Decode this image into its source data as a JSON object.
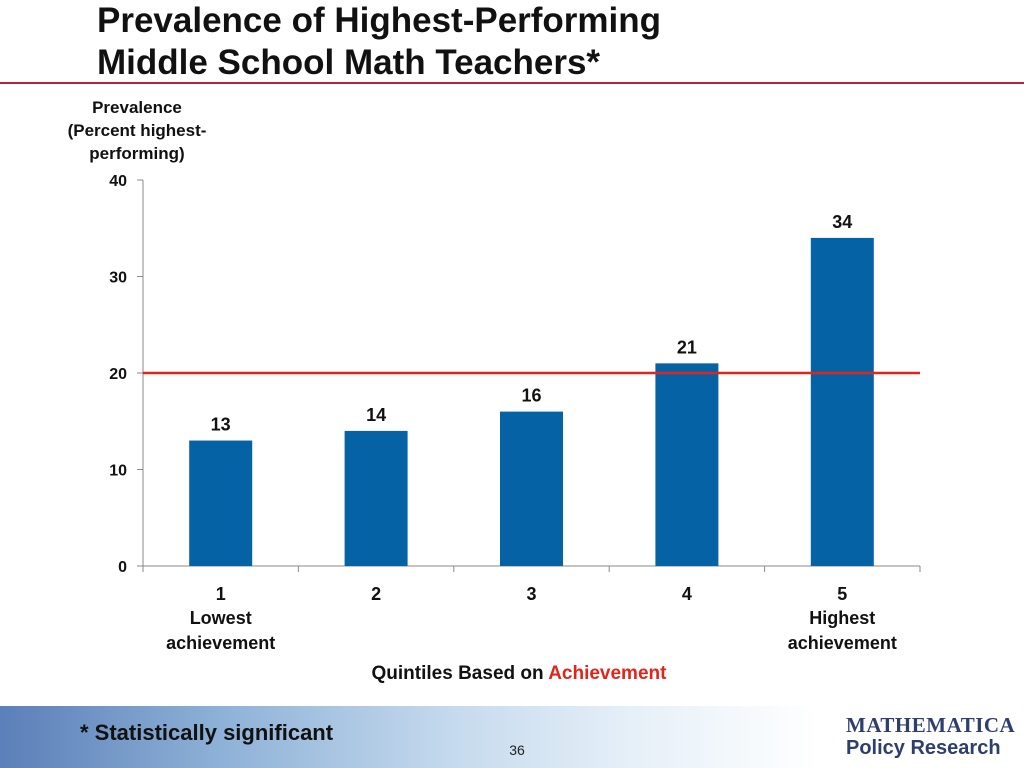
{
  "slide": {
    "title_line1": "Prevalence of Highest-Performing",
    "title_line2": "Middle School Math Teachers*",
    "footnote": "* Statistically significant",
    "page_number": "36",
    "logo_line1": "MATHEMATICA",
    "logo_line2": "Policy Research"
  },
  "colors": {
    "bar": "#0563a5",
    "reference_line": "#e0251b",
    "title_rule": "#b5253a",
    "xlabel_highlight": "#e0251b"
  },
  "chart_data": {
    "type": "bar",
    "categories": [
      "1",
      "2",
      "3",
      "4",
      "5"
    ],
    "category_sublabels": [
      "Lowest\nachievement",
      "",
      "",
      "",
      "Highest\nachievement"
    ],
    "values": [
      13,
      14,
      16,
      21,
      34
    ],
    "data_labels": [
      "13",
      "14",
      "16",
      "21",
      "34"
    ],
    "ylabel_lines": [
      "Prevalence",
      "(Percent highest-",
      "performing)"
    ],
    "xlabel_prefix": "Quintiles Based on ",
    "xlabel_highlight": "Achievement",
    "ylim": [
      0,
      40
    ],
    "yticks": [
      0,
      10,
      20,
      30,
      40
    ],
    "reference_line": 20,
    "grid": false
  }
}
